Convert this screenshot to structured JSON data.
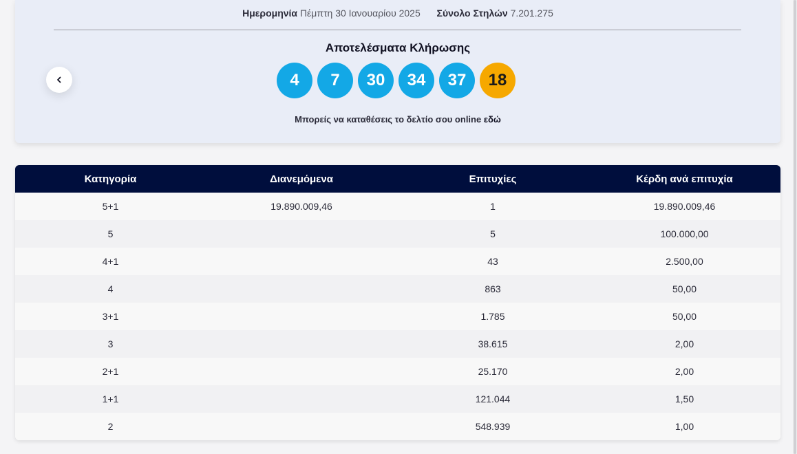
{
  "draw": {
    "date_label": "Ημερομηνία",
    "date_value": "Πέμπτη 30 Ιανουαρίου 2025",
    "total_label": "Σύνολο Στηλών",
    "total_value": "7.201.275",
    "results_title": "Αποτελέσματα Κλήρωσης",
    "numbers": [
      "4",
      "7",
      "30",
      "34",
      "37"
    ],
    "joker": "18",
    "online_note": "Μπορείς να καταθέσεις το δελτίο σου online",
    "online_link": "εδώ",
    "prev_icon": "chevron-left-icon"
  },
  "colors": {
    "ball": "#13a8e6",
    "joker_ball": "#f6a800",
    "table_header": "#000e3d"
  },
  "table": {
    "headers": [
      "Κατηγορία",
      "Διανεμόμενα",
      "Επιτυχίες",
      "Κέρδη ανά επιτυχία"
    ],
    "rows": [
      [
        "5+1",
        "19.890.009,46",
        "1",
        "19.890.009,46"
      ],
      [
        "5",
        "",
        "5",
        "100.000,00"
      ],
      [
        "4+1",
        "",
        "43",
        "2.500,00"
      ],
      [
        "4",
        "",
        "863",
        "50,00"
      ],
      [
        "3+1",
        "",
        "1.785",
        "50,00"
      ],
      [
        "3",
        "",
        "38.615",
        "2,00"
      ],
      [
        "2+1",
        "",
        "25.170",
        "2,00"
      ],
      [
        "1+1",
        "",
        "121.044",
        "1,50"
      ],
      [
        "2",
        "",
        "548.939",
        "1,00"
      ]
    ]
  }
}
